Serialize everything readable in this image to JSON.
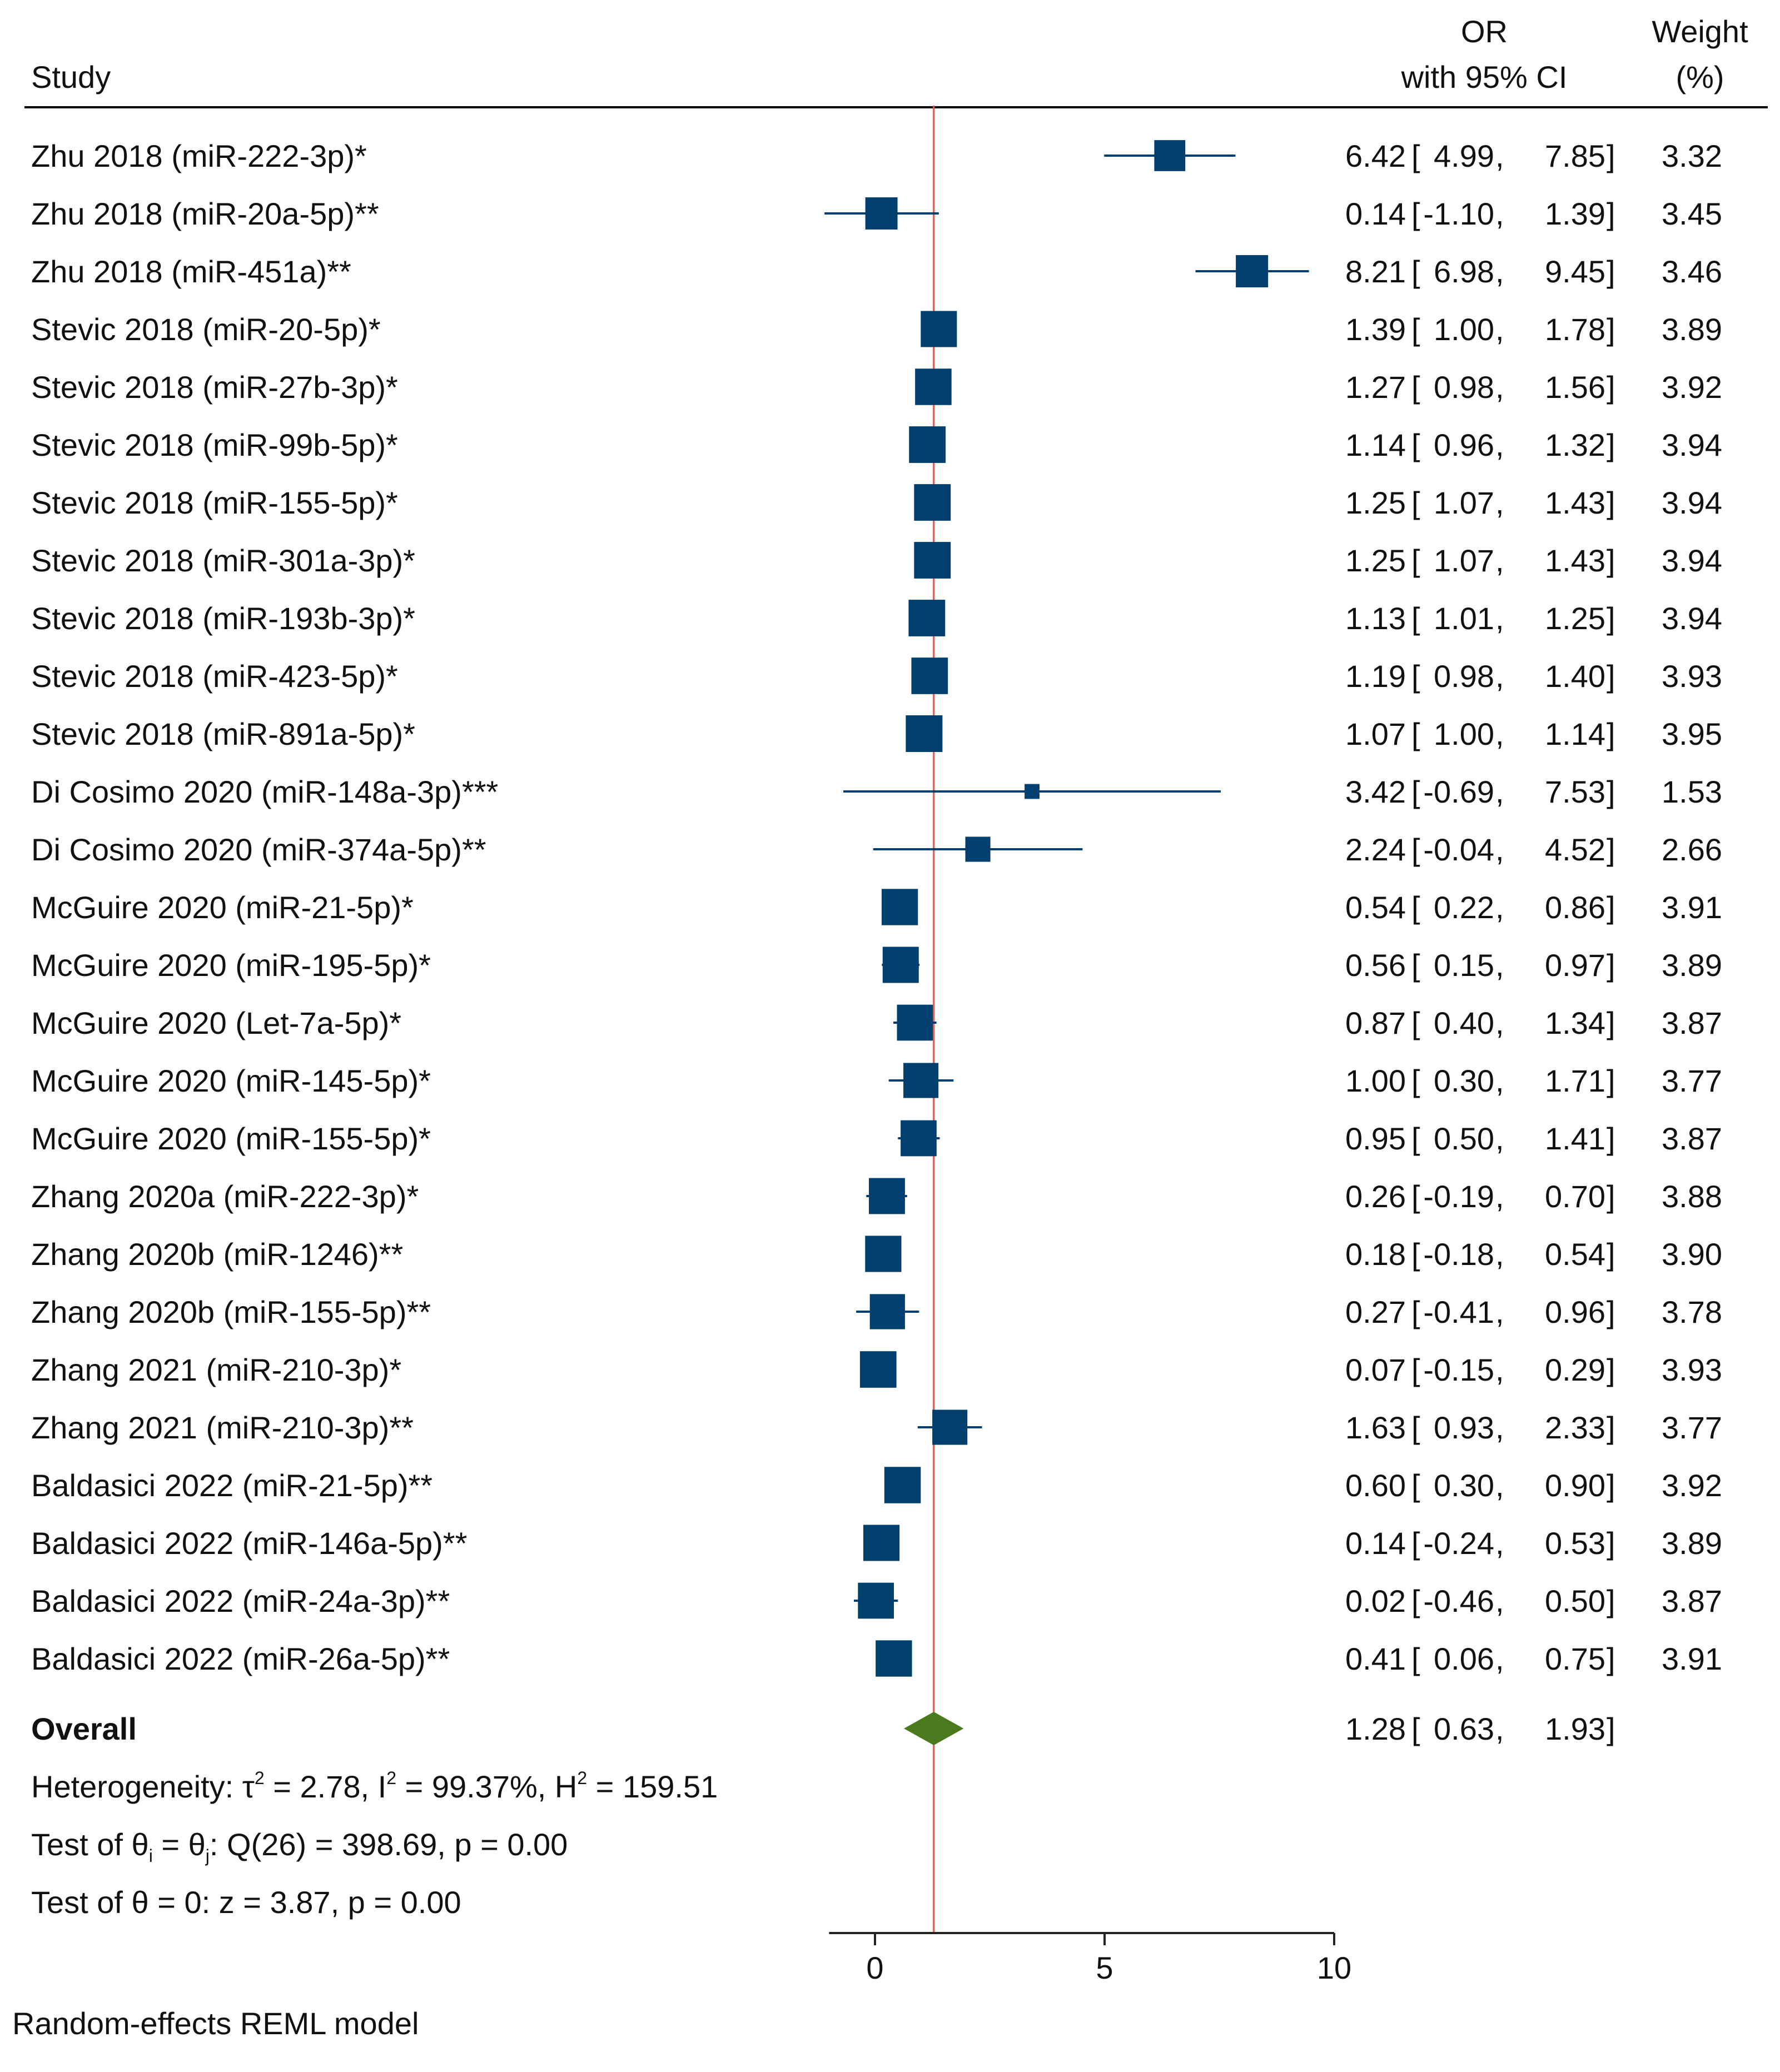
{
  "headers": {
    "study": "Study",
    "or_line1": "OR",
    "or_line2": "with 95% CI",
    "weight_line1": "Weight",
    "weight_line2": "(%)"
  },
  "chart_data": {
    "type": "forest",
    "measure": "OR",
    "ci_level": "95%",
    "xlim": [
      -1,
      10
    ],
    "xticks": [
      0,
      5,
      10
    ],
    "reference_line": 1.28,
    "colors": {
      "box": "#003f6e",
      "ci_line": "#003f6e",
      "diamond": "#4a7a1e",
      "reference_line": "#e0584e",
      "axis": "#222222"
    },
    "studies": [
      {
        "label": "Zhu 2018 (miR-222-3p)*",
        "est": 6.42,
        "lo": 4.99,
        "hi": 7.85,
        "est_text": "6.42",
        "lo_text": "4.99",
        "hi_text": "7.85",
        "weight": "3.32"
      },
      {
        "label": "Zhu 2018 (miR-20a-5p)**",
        "est": 0.14,
        "lo": -1.1,
        "hi": 1.39,
        "est_text": "0.14",
        "lo_text": "-1.10",
        "hi_text": "1.39",
        "weight": "3.45"
      },
      {
        "label": "Zhu 2018 (miR-451a)**",
        "est": 8.21,
        "lo": 6.98,
        "hi": 9.45,
        "est_text": "8.21",
        "lo_text": "6.98",
        "hi_text": "9.45",
        "weight": "3.46"
      },
      {
        "label": "Stevic 2018 (miR-20-5p)*",
        "est": 1.39,
        "lo": 1.0,
        "hi": 1.78,
        "est_text": "1.39",
        "lo_text": "1.00",
        "hi_text": "1.78",
        "weight": "3.89"
      },
      {
        "label": "Stevic 2018 (miR-27b-3p)*",
        "est": 1.27,
        "lo": 0.98,
        "hi": 1.56,
        "est_text": "1.27",
        "lo_text": "0.98",
        "hi_text": "1.56",
        "weight": "3.92"
      },
      {
        "label": "Stevic 2018 (miR-99b-5p)*",
        "est": 1.14,
        "lo": 0.96,
        "hi": 1.32,
        "est_text": "1.14",
        "lo_text": "0.96",
        "hi_text": "1.32",
        "weight": "3.94"
      },
      {
        "label": "Stevic 2018 (miR-155-5p)*",
        "est": 1.25,
        "lo": 1.07,
        "hi": 1.43,
        "est_text": "1.25",
        "lo_text": "1.07",
        "hi_text": "1.43",
        "weight": "3.94"
      },
      {
        "label": "Stevic 2018 (miR-301a-3p)*",
        "est": 1.25,
        "lo": 1.07,
        "hi": 1.43,
        "est_text": "1.25",
        "lo_text": "1.07",
        "hi_text": "1.43",
        "weight": "3.94"
      },
      {
        "label": "Stevic 2018 (miR-193b-3p)*",
        "est": 1.13,
        "lo": 1.01,
        "hi": 1.25,
        "est_text": "1.13",
        "lo_text": "1.01",
        "hi_text": "1.25",
        "weight": "3.94"
      },
      {
        "label": "Stevic 2018 (miR-423-5p)*",
        "est": 1.19,
        "lo": 0.98,
        "hi": 1.4,
        "est_text": "1.19",
        "lo_text": "0.98",
        "hi_text": "1.40",
        "weight": "3.93"
      },
      {
        "label": "Stevic 2018 (miR-891a-5p)*",
        "est": 1.07,
        "lo": 1.0,
        "hi": 1.14,
        "est_text": "1.07",
        "lo_text": "1.00",
        "hi_text": "1.14",
        "weight": "3.95"
      },
      {
        "label": "Di Cosimo 2020 (miR-148a-3p)***",
        "est": 3.42,
        "lo": -0.69,
        "hi": 7.53,
        "est_text": "3.42",
        "lo_text": "-0.69",
        "hi_text": "7.53",
        "weight": "1.53"
      },
      {
        "label": "Di Cosimo 2020 (miR-374a-5p)**",
        "est": 2.24,
        "lo": -0.04,
        "hi": 4.52,
        "est_text": "2.24",
        "lo_text": "-0.04",
        "hi_text": "4.52",
        "weight": "2.66"
      },
      {
        "label": "McGuire 2020 (miR-21-5p)*",
        "est": 0.54,
        "lo": 0.22,
        "hi": 0.86,
        "est_text": "0.54",
        "lo_text": "0.22",
        "hi_text": "0.86",
        "weight": "3.91"
      },
      {
        "label": "McGuire 2020 (miR-195-5p)*",
        "est": 0.56,
        "lo": 0.15,
        "hi": 0.97,
        "est_text": "0.56",
        "lo_text": "0.15",
        "hi_text": "0.97",
        "weight": "3.89"
      },
      {
        "label": "McGuire 2020 (Let-7a-5p)*",
        "est": 0.87,
        "lo": 0.4,
        "hi": 1.34,
        "est_text": "0.87",
        "lo_text": "0.40",
        "hi_text": "1.34",
        "weight": "3.87"
      },
      {
        "label": "McGuire 2020 (miR-145-5p)*",
        "est": 1.0,
        "lo": 0.3,
        "hi": 1.71,
        "est_text": "1.00",
        "lo_text": "0.30",
        "hi_text": "1.71",
        "weight": "3.77"
      },
      {
        "label": "McGuire 2020 (miR-155-5p)*",
        "est": 0.95,
        "lo": 0.5,
        "hi": 1.41,
        "est_text": "0.95",
        "lo_text": "0.50",
        "hi_text": "1.41",
        "weight": "3.87"
      },
      {
        "label": "Zhang 2020a (miR-222-3p)*",
        "est": 0.26,
        "lo": -0.19,
        "hi": 0.7,
        "est_text": "0.26",
        "lo_text": "-0.19",
        "hi_text": "0.70",
        "weight": "3.88"
      },
      {
        "label": "Zhang 2020b (miR-1246)**",
        "est": 0.18,
        "lo": -0.18,
        "hi": 0.54,
        "est_text": "0.18",
        "lo_text": "-0.18",
        "hi_text": "0.54",
        "weight": "3.90"
      },
      {
        "label": "Zhang 2020b (miR-155-5p)**",
        "est": 0.27,
        "lo": -0.41,
        "hi": 0.96,
        "est_text": "0.27",
        "lo_text": "-0.41",
        "hi_text": "0.96",
        "weight": "3.78"
      },
      {
        "label": "Zhang 2021 (miR-210-3p)*",
        "est": 0.07,
        "lo": -0.15,
        "hi": 0.29,
        "est_text": "0.07",
        "lo_text": "-0.15",
        "hi_text": "0.29",
        "weight": "3.93"
      },
      {
        "label": "Zhang 2021 (miR-210-3p)**",
        "est": 1.63,
        "lo": 0.93,
        "hi": 2.33,
        "est_text": "1.63",
        "lo_text": "0.93",
        "hi_text": "2.33",
        "weight": "3.77"
      },
      {
        "label": "Baldasici 2022 (miR-21-5p)**",
        "est": 0.6,
        "lo": 0.3,
        "hi": 0.9,
        "est_text": "0.60",
        "lo_text": "0.30",
        "hi_text": "0.90",
        "weight": "3.92"
      },
      {
        "label": "Baldasici 2022 (miR-146a-5p)**",
        "est": 0.14,
        "lo": -0.24,
        "hi": 0.53,
        "est_text": "0.14",
        "lo_text": "-0.24",
        "hi_text": "0.53",
        "weight": "3.89"
      },
      {
        "label": "Baldasici 2022 (miR-24a-3p)**",
        "est": 0.02,
        "lo": -0.46,
        "hi": 0.5,
        "est_text": "0.02",
        "lo_text": "-0.46",
        "hi_text": "0.50",
        "weight": "3.87"
      },
      {
        "label": "Baldasici 2022 (miR-26a-5p)**",
        "est": 0.41,
        "lo": 0.06,
        "hi": 0.75,
        "est_text": "0.41",
        "lo_text": "0.06",
        "hi_text": "0.75",
        "weight": "3.91"
      }
    ],
    "overall": {
      "label": "Overall",
      "est": 1.28,
      "lo": 0.63,
      "hi": 1.93,
      "est_text": "1.28",
      "lo_text": "0.63",
      "hi_text": "1.93"
    },
    "heterogeneity": {
      "prefix": "Heterogeneity: ",
      "tau_sym": "τ",
      "sup": "2",
      "tau_value": " = 2.78, ",
      "i_sym": "I",
      "i_value": " = 99.37%, ",
      "h_sym": "H",
      "h_value": " = 159.51"
    },
    "test_q": {
      "prefix": "Test of ",
      "theta": "θ",
      "sub_i": "i",
      "eq": " = ",
      "sub_j": "j",
      "stat": ": Q(26) = 398.69, p = 0.00"
    },
    "test_z": "Test of θ = 0: z = 3.87, p = 0.00",
    "model_note": "Random-effects REML model"
  }
}
